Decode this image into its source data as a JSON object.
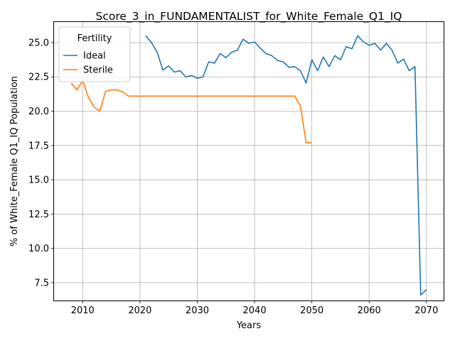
{
  "chart_data": {
    "type": "line",
    "title": "Score_3_in_FUNDAMENTALIST_for_White_Female_Q1_IQ",
    "xlabel": "Years",
    "ylabel": "% of White_Female Q1_IQ Population",
    "xlim": [
      2005,
      2073
    ],
    "ylim": [
      6.2,
      26.5
    ],
    "xticks": [
      2010,
      2020,
      2030,
      2040,
      2050,
      2060,
      2070
    ],
    "yticks": [
      7.5,
      10.0,
      12.5,
      15.0,
      17.5,
      20.0,
      22.5,
      25.0
    ],
    "ytick_labels": [
      "7.5",
      "10.0",
      "12.5",
      "15.0",
      "17.5",
      "20.0",
      "22.5",
      "25.0"
    ],
    "grid": true,
    "legend": {
      "title": "Fertility",
      "placement": "top-left"
    },
    "series": [
      {
        "name": "Ideal",
        "color": "#1f77b4",
        "x": [
          2021,
          2022,
          2023,
          2024,
          2025,
          2026,
          2027,
          2028,
          2029,
          2030,
          2031,
          2032,
          2033,
          2034,
          2035,
          2036,
          2037,
          2038,
          2039,
          2040,
          2041,
          2042,
          2043,
          2044,
          2045,
          2046,
          2047,
          2048,
          2049,
          2050,
          2051,
          2052,
          2053,
          2054,
          2055,
          2056,
          2057,
          2058,
          2059,
          2060,
          2061,
          2062,
          2063,
          2064,
          2065,
          2066,
          2067,
          2068,
          2069,
          2070
        ],
        "y": [
          25.5,
          25.0,
          24.3,
          23.0,
          23.3,
          22.85,
          22.95,
          22.5,
          22.6,
          22.4,
          22.5,
          23.6,
          23.5,
          24.2,
          23.9,
          24.3,
          24.45,
          25.25,
          24.95,
          25.05,
          24.6,
          24.2,
          24.05,
          23.7,
          23.6,
          23.2,
          23.25,
          22.95,
          22.05,
          23.75,
          22.95,
          23.95,
          23.25,
          24.05,
          23.75,
          24.7,
          24.55,
          25.5,
          25.05,
          24.8,
          24.95,
          24.45,
          24.95,
          24.45,
          23.5,
          23.8,
          22.95,
          23.25,
          6.6,
          7.0
        ]
      },
      {
        "name": "Sterile",
        "color": "#ff7f0e",
        "x": [
          2008,
          2009,
          2010,
          2011,
          2012,
          2013,
          2014,
          2015,
          2016,
          2017,
          2018,
          2019,
          2020,
          2021,
          2022,
          2023,
          2024,
          2025,
          2026,
          2027,
          2028,
          2029,
          2030,
          2031,
          2032,
          2033,
          2034,
          2035,
          2036,
          2037,
          2038,
          2039,
          2040,
          2041,
          2042,
          2043,
          2044,
          2045,
          2046,
          2047,
          2048,
          2049,
          2050
        ],
        "y": [
          22.05,
          21.55,
          22.25,
          21.0,
          20.3,
          20.0,
          21.45,
          21.55,
          21.55,
          21.4,
          21.1,
          21.1,
          21.1,
          21.1,
          21.1,
          21.1,
          21.1,
          21.1,
          21.1,
          21.1,
          21.1,
          21.1,
          21.1,
          21.1,
          21.1,
          21.1,
          21.1,
          21.1,
          21.1,
          21.1,
          21.1,
          21.1,
          21.1,
          21.1,
          21.1,
          21.1,
          21.1,
          21.1,
          21.1,
          21.1,
          20.4,
          17.7,
          17.7
        ]
      }
    ]
  }
}
